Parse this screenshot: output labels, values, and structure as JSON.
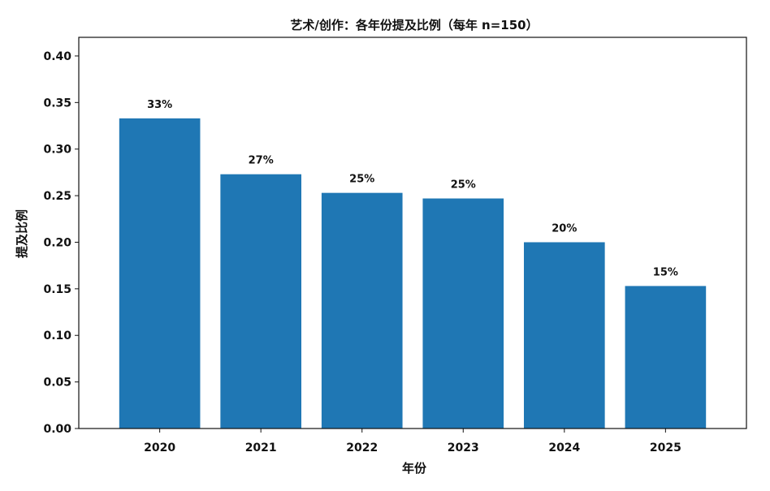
{
  "chart_data": {
    "type": "bar",
    "title": "艺术/创作：各年份提及比例（每年 n=150）",
    "xlabel": "年份",
    "ylabel": "提及比例",
    "categories": [
      "2020",
      "2021",
      "2022",
      "2023",
      "2024",
      "2025"
    ],
    "values": [
      0.333,
      0.273,
      0.253,
      0.247,
      0.2,
      0.153
    ],
    "data_labels": [
      "33%",
      "27%",
      "25%",
      "25%",
      "20%",
      "15%"
    ],
    "ylim": [
      0,
      0.42
    ],
    "yticks": [
      "0.00",
      "0.05",
      "0.10",
      "0.15",
      "0.20",
      "0.25",
      "0.30",
      "0.35",
      "0.40"
    ],
    "bar_color": "#1f77b4",
    "grid": false,
    "legend": "none"
  }
}
